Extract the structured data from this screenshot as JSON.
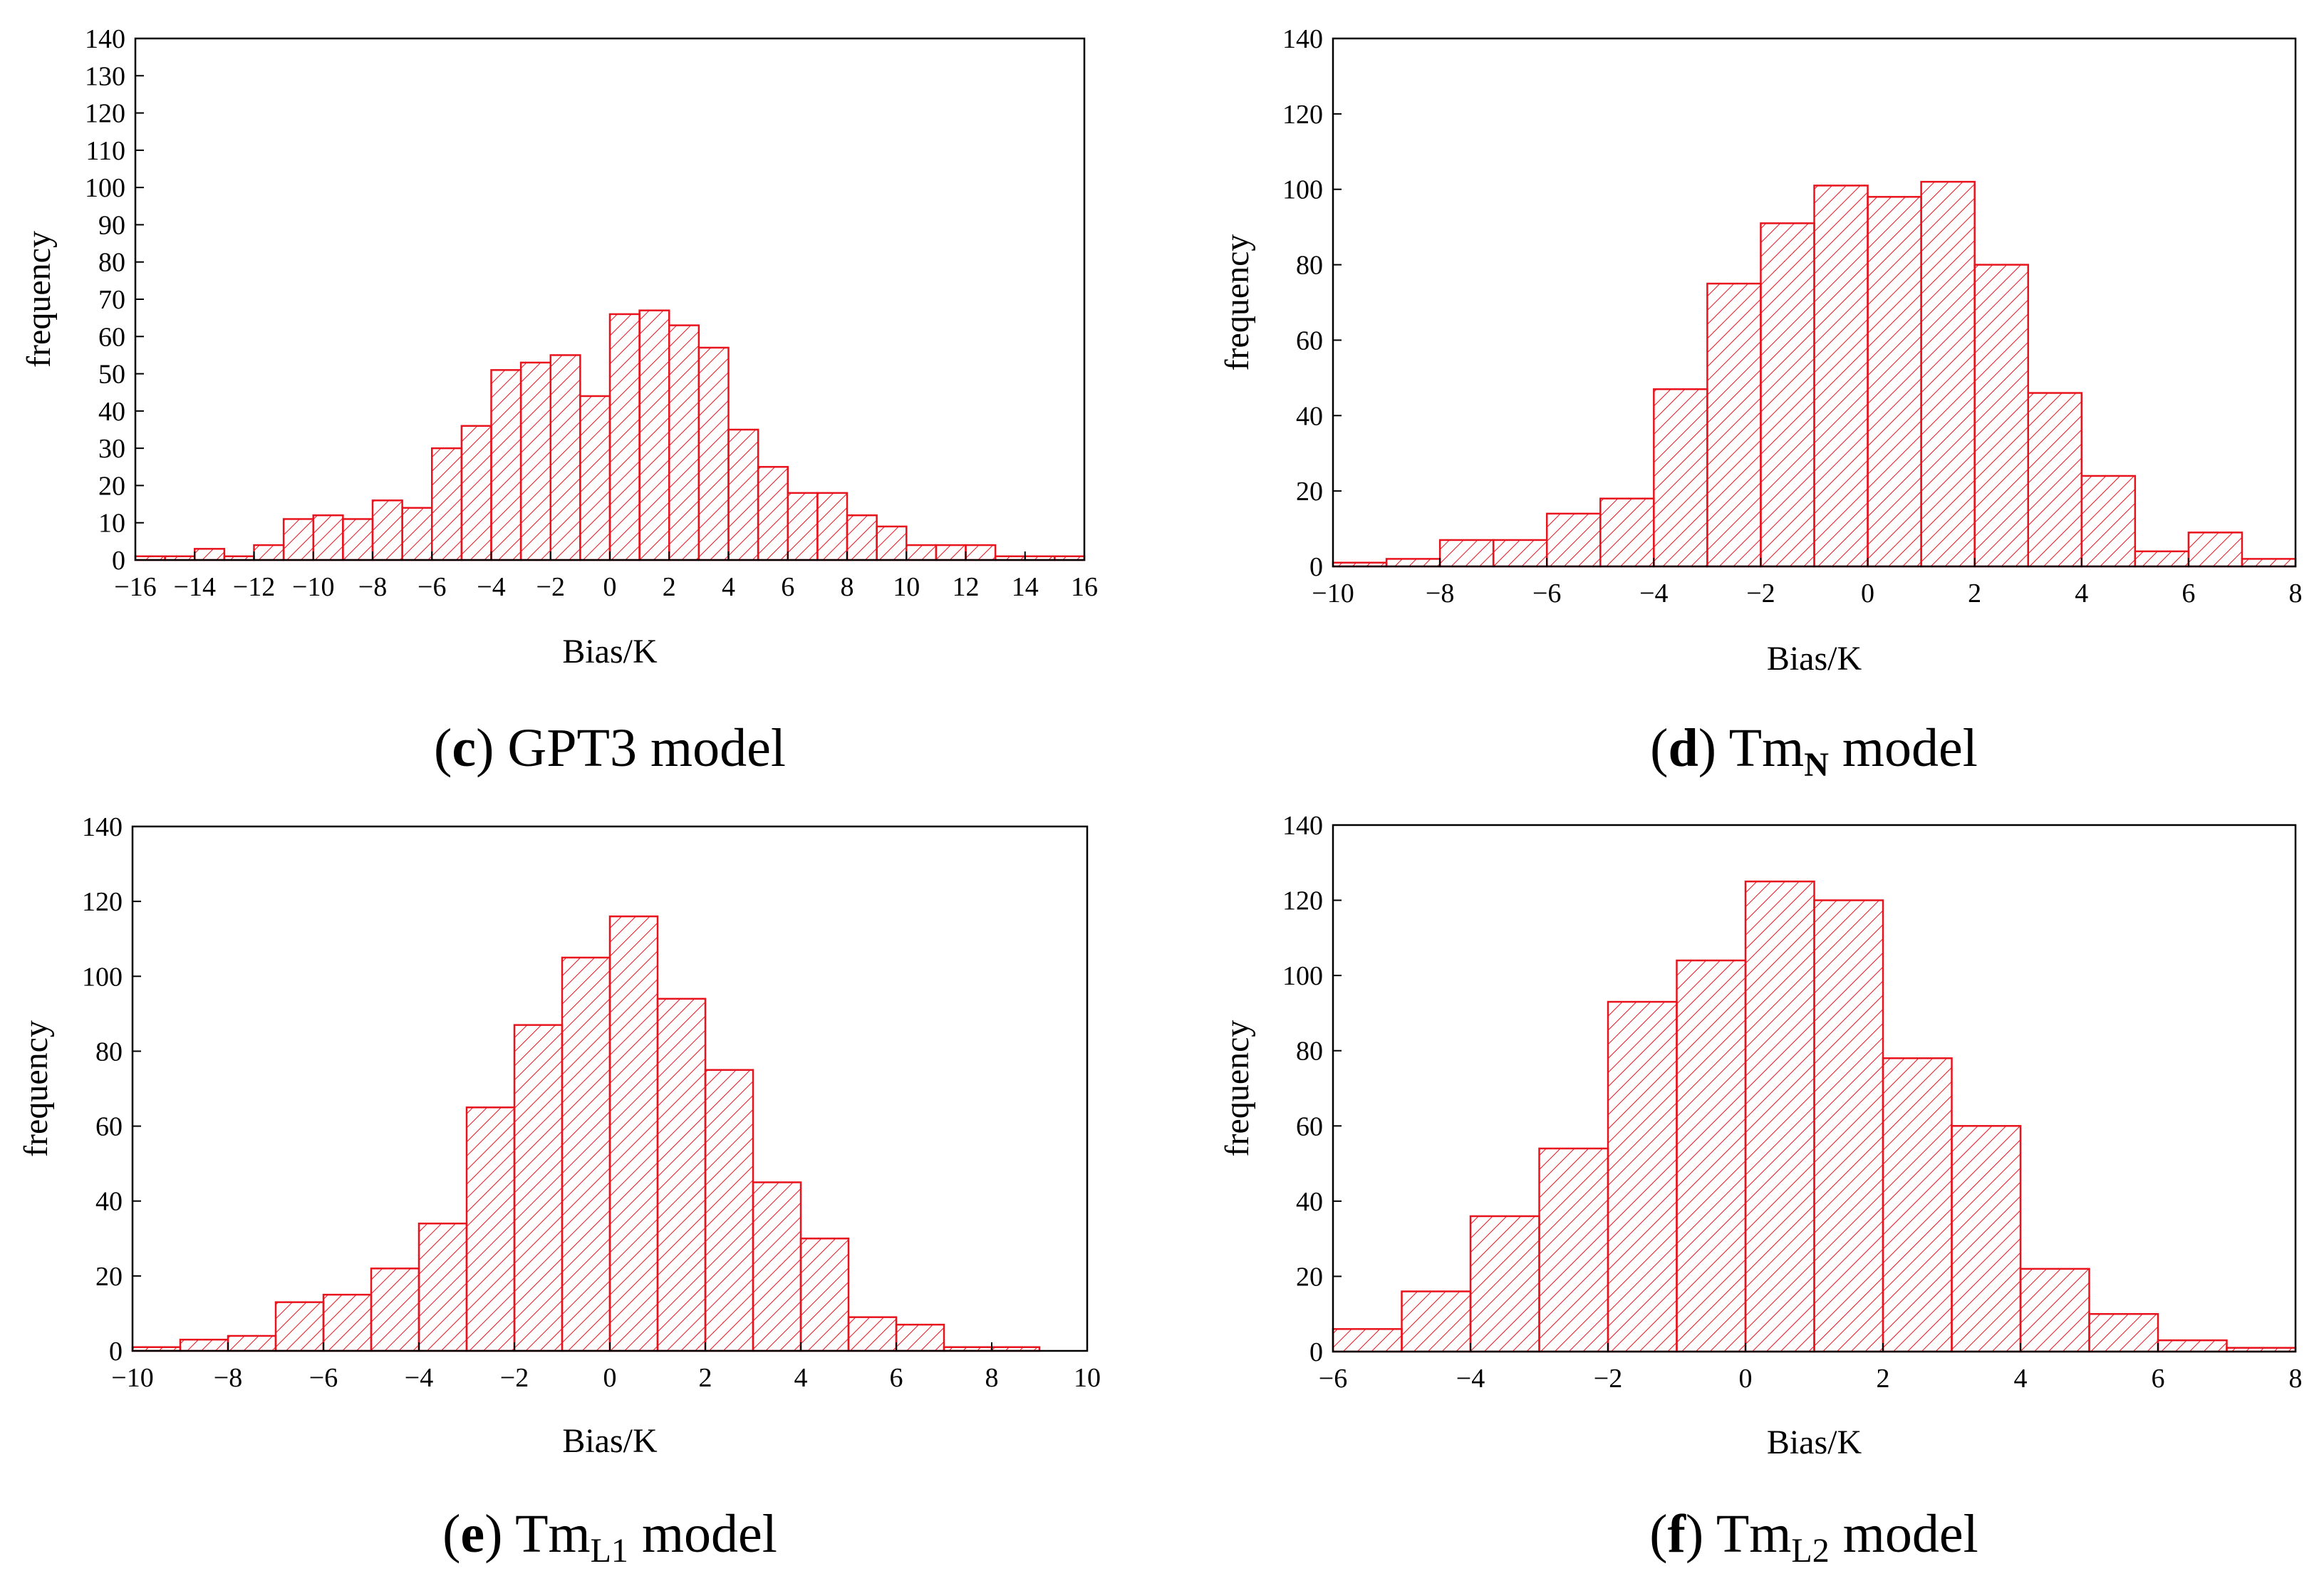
{
  "colors": {
    "bar_stroke": "#e8131c",
    "hatch": "#e8131c",
    "axis": "#000000"
  },
  "chart_data": [
    {
      "id": "c",
      "type": "bar",
      "caption": {
        "open": "(",
        "letter": "c",
        "close": ")",
        "text": "GPT3 model",
        "sub": ""
      },
      "xlabel": "Bias/K",
      "ylabel": "frequency",
      "xlim": [
        -16,
        16
      ],
      "ylim": [
        0,
        140
      ],
      "xticks": [
        -16,
        -14,
        -12,
        -10,
        -8,
        -6,
        -4,
        -2,
        0,
        2,
        4,
        6,
        8,
        10,
        12,
        14,
        16
      ],
      "xtick_labels": [
        "−16",
        "−14",
        "−12",
        "−10",
        "−8",
        "−6",
        "−4",
        "−2",
        "0",
        "2",
        "4",
        "6",
        "8",
        "10",
        "12",
        "14",
        "16"
      ],
      "yticks": [
        0,
        10,
        20,
        30,
        40,
        50,
        60,
        70,
        80,
        90,
        100,
        110,
        120,
        130,
        140
      ],
      "ytick_labels": [
        "0",
        "10",
        "20",
        "30",
        "40",
        "50",
        "60",
        "70",
        "80",
        "90",
        "100",
        "110",
        "120",
        "130",
        "140"
      ],
      "bin_start": -16,
      "bin_width": 1,
      "values": [
        1,
        1,
        3,
        1,
        4,
        11,
        12,
        11,
        16,
        14,
        30,
        36,
        51,
        53,
        55,
        44,
        66,
        67,
        63,
        57,
        35,
        25,
        18,
        18,
        12,
        9,
        4,
        4,
        4,
        1,
        1,
        1
      ]
    },
    {
      "id": "d",
      "type": "bar",
      "caption": {
        "open": "(",
        "letter": "d",
        "close": ")",
        "text": "Tm",
        "sub": "N",
        "suffix": "model"
      },
      "xlabel": "Bias/K",
      "ylabel": "frequency",
      "xlim": [
        -10,
        8
      ],
      "ylim": [
        0,
        140
      ],
      "xticks": [
        -10,
        -8,
        -6,
        -4,
        -2,
        0,
        2,
        4,
        6,
        8
      ],
      "xtick_labels": [
        "−10",
        "−8",
        "−6",
        "−4",
        "−2",
        "0",
        "2",
        "4",
        "6",
        "8"
      ],
      "yticks": [
        0,
        20,
        40,
        60,
        80,
        100,
        120,
        140
      ],
      "ytick_labels": [
        "0",
        "20",
        "40",
        "60",
        "80",
        "100",
        "120",
        "140"
      ],
      "bin_start": -10,
      "bin_width": 1,
      "values": [
        1,
        2,
        7,
        7,
        14,
        18,
        47,
        75,
        91,
        101,
        98,
        102,
        80,
        46,
        24,
        4,
        9,
        2
      ]
    },
    {
      "id": "e",
      "type": "bar",
      "caption": {
        "open": "(",
        "letter": "e",
        "close": ")",
        "text": "Tm",
        "sub": "L1",
        "suffix": "model"
      },
      "xlabel": "Bias/K",
      "ylabel": "frequency",
      "xlim": [
        -10,
        10
      ],
      "ylim": [
        0,
        140
      ],
      "xticks": [
        -10,
        -8,
        -6,
        -4,
        -2,
        0,
        2,
        4,
        6,
        8,
        10
      ],
      "xtick_labels": [
        "−10",
        "−8",
        "−6",
        "−4",
        "−2",
        "0",
        "2",
        "4",
        "6",
        "8",
        "10"
      ],
      "yticks": [
        0,
        20,
        40,
        60,
        80,
        100,
        120,
        140
      ],
      "ytick_labels": [
        "0",
        "20",
        "40",
        "60",
        "80",
        "100",
        "120",
        "140"
      ],
      "bin_start": -10,
      "bin_width": 1,
      "values": [
        1,
        3,
        4,
        13,
        15,
        22,
        34,
        65,
        87,
        105,
        116,
        94,
        75,
        45,
        30,
        9,
        7,
        1,
        1,
        0
      ]
    },
    {
      "id": "f",
      "type": "bar",
      "caption": {
        "open": "(",
        "letter": "f",
        "close": ")",
        "text": "Tm",
        "sub": "L2",
        "suffix": "model"
      },
      "xlabel": "Bias/K",
      "ylabel": "frequency",
      "xlim": [
        -6,
        8
      ],
      "ylim": [
        0,
        140
      ],
      "xticks": [
        -6,
        -4,
        -2,
        0,
        2,
        4,
        6,
        8
      ],
      "xtick_labels": [
        "−6",
        "−4",
        "−2",
        "0",
        "2",
        "4",
        "6",
        "8"
      ],
      "yticks": [
        0,
        20,
        40,
        60,
        80,
        100,
        120,
        140
      ],
      "ytick_labels": [
        "0",
        "20",
        "40",
        "60",
        "80",
        "100",
        "120",
        "140"
      ],
      "bin_start": -6,
      "bin_width": 1,
      "values": [
        6,
        16,
        36,
        54,
        93,
        104,
        125,
        120,
        78,
        60,
        22,
        10,
        3,
        1
      ]
    }
  ]
}
